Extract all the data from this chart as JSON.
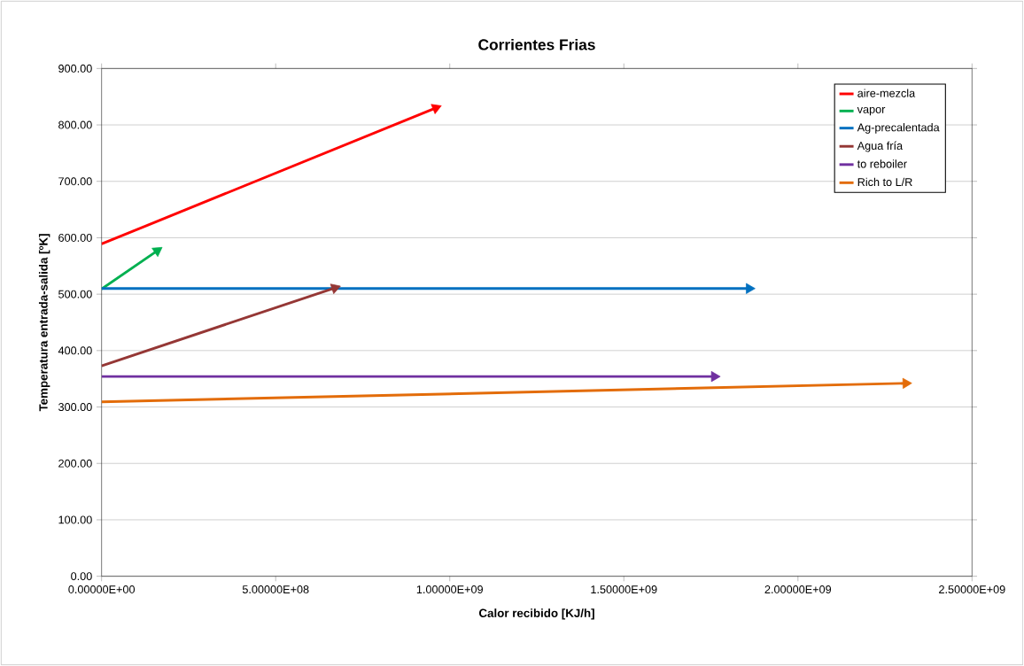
{
  "chart_data": {
    "type": "line",
    "title": "Corrientes Frias",
    "xlabel": "Calor recibido [KJ/h]",
    "ylabel": "Temperatura entrada-salida [ºK]",
    "xlim": [
      0,
      2500000000
    ],
    "ylim": [
      0,
      900
    ],
    "xticks": [
      {
        "value": 0,
        "label": "0.00000E+00"
      },
      {
        "value": 500000000,
        "label": "5.00000E+08"
      },
      {
        "value": 1000000000,
        "label": "1.00000E+09"
      },
      {
        "value": 1500000000,
        "label": "1.50000E+09"
      },
      {
        "value": 2000000000,
        "label": "2.00000E+09"
      },
      {
        "value": 2500000000,
        "label": "2.50000E+09"
      }
    ],
    "yticks": [
      {
        "value": 0,
        "label": "0.00"
      },
      {
        "value": 100,
        "label": "100.00"
      },
      {
        "value": 200,
        "label": "200.00"
      },
      {
        "value": 300,
        "label": "300.00"
      },
      {
        "value": 400,
        "label": "400.00"
      },
      {
        "value": 500,
        "label": "500.00"
      },
      {
        "value": 600,
        "label": "600.00"
      },
      {
        "value": 700,
        "label": "700.00"
      },
      {
        "value": 800,
        "label": "800.00"
      },
      {
        "value": 900,
        "label": "900.00"
      }
    ],
    "grid": "y",
    "legend": "top right",
    "line_style": "solid",
    "marker": "triangle",
    "series": [
      {
        "name": "aire-mezcla",
        "color": "#ff0000",
        "x": [
          0,
          960000000
        ],
        "values": [
          589,
          830
        ]
      },
      {
        "name": "vapor",
        "color": "#00b050",
        "x": [
          0,
          160000000
        ],
        "values": [
          509,
          577
        ]
      },
      {
        "name": "Ag-precalentada",
        "color": "#0070c0",
        "x": [
          0,
          1860000000
        ],
        "values": [
          510,
          510
        ]
      },
      {
        "name": "Agua fría",
        "color": "#953735",
        "x": [
          0,
          670000000
        ],
        "values": [
          373,
          511
        ]
      },
      {
        "name": "to reboiler",
        "color": "#7030a0",
        "x": [
          0,
          1760000000
        ],
        "values": [
          354,
          354
        ]
      },
      {
        "name": "Rich to L/R",
        "color": "#e36c09",
        "x": [
          0,
          2310000000
        ],
        "values": [
          309,
          342
        ]
      }
    ]
  }
}
